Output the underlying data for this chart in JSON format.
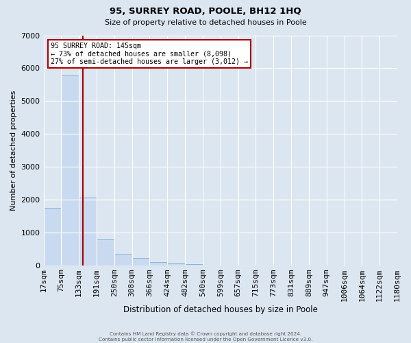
{
  "title": "95, SURREY ROAD, POOLE, BH12 1HQ",
  "subtitle": "Size of property relative to detached houses in Poole",
  "xlabel": "Distribution of detached houses by size in Poole",
  "ylabel": "Number of detached properties",
  "bar_values": [
    1750,
    5780,
    2070,
    800,
    360,
    220,
    100,
    50,
    30,
    0,
    0,
    0,
    0,
    0,
    0,
    0,
    0,
    0,
    0
  ],
  "tick_labels": [
    "17sqm",
    "75sqm",
    "133sqm",
    "191sqm",
    "250sqm",
    "308sqm",
    "366sqm",
    "424sqm",
    "482sqm",
    "540sqm",
    "599sqm",
    "657sqm",
    "715sqm",
    "773sqm",
    "831sqm",
    "889sqm",
    "947sqm",
    "1006sqm",
    "1064sqm",
    "1122sqm",
    "1180sqm"
  ],
  "bar_color": "#c9daf0",
  "bar_edgecolor": "#7badd4",
  "vline_bin": 1.25,
  "vline_color": "#aa0000",
  "ylim": [
    0,
    7000
  ],
  "yticks": [
    0,
    1000,
    2000,
    3000,
    4000,
    5000,
    6000,
    7000
  ],
  "annotation_title": "95 SURREY ROAD: 145sqm",
  "annotation_line1": "← 73% of detached houses are smaller (8,098)",
  "annotation_line2": "27% of semi-detached houses are larger (3,012) →",
  "annotation_box_color": "#ffffff",
  "annotation_box_edgecolor": "#aa0000",
  "footer1": "Contains HM Land Registry data © Crown copyright and database right 2024.",
  "footer2": "Contains public sector information licensed under the Open Government Licence v3.0.",
  "background_color": "#dce6f1",
  "grid_color": "#ffffff",
  "fig_width": 6.0,
  "fig_height": 5.0,
  "dpi": 100
}
